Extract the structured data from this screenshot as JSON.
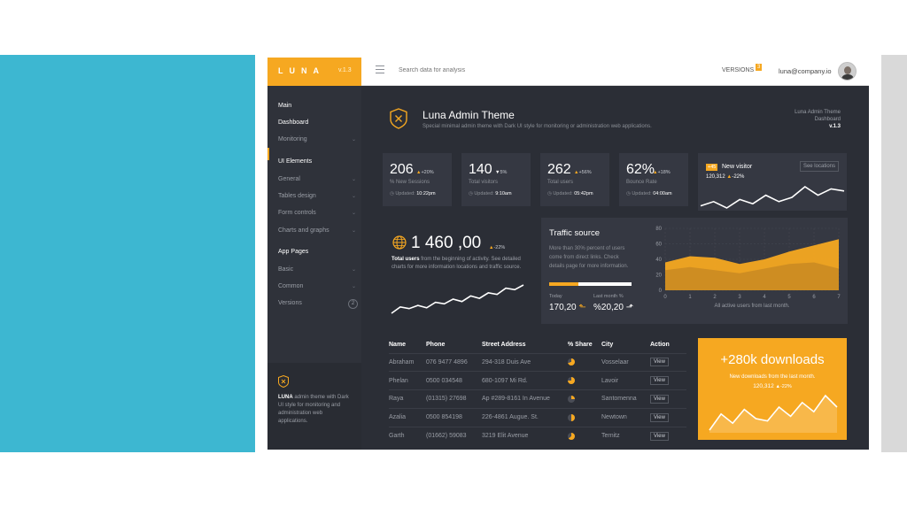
{
  "colors": {
    "accent": "#f6a821",
    "panel": "#2b2e36",
    "card": "#353842",
    "slide_blue": "#3db7d1"
  },
  "topbar": {
    "brand": "LUNA",
    "version": "v.1.3",
    "menu_icon": "hamburger-icon",
    "search_placeholder": "Search data for analysis",
    "versions_label": "VERSIONS",
    "versions_count": "3",
    "user_email": "luna@company.io"
  },
  "sidebar": {
    "main_heading": "Main",
    "dashboard": "Dashboard",
    "monitoring": "Monitoring",
    "ui_heading": "UI Elements",
    "general": "General",
    "tables": "Tables design",
    "forms": "Form controls",
    "charts": "Charts and graphs",
    "app_heading": "App Pages",
    "basic": "Basic",
    "common": "Common",
    "versions": "Versions",
    "versions_count": "2",
    "footer_brand": "LUNA",
    "footer_text": " admin theme with Dark UI style for monitoring and administration web applications."
  },
  "header": {
    "title": "Luna Admin Theme",
    "subtitle": "Special minimal admin theme with Dark UI style for monitoring or administration web applications.",
    "right_line1": "Luna Admin Theme",
    "right_line2": "Dashboard",
    "right_line3": "v.1.3"
  },
  "stats": [
    {
      "value": "206",
      "trend": "+20%",
      "label": "% New Sessions",
      "updated_label": "Updated:",
      "updated": "10:22pm"
    },
    {
      "value": "140",
      "trend": "5%",
      "label": "Total visitors",
      "updated_label": "Updated:",
      "updated": "9:10am"
    },
    {
      "value": "262",
      "trend": "+56%",
      "label": "Total users",
      "updated_label": "Updated:",
      "updated": "05:42pm"
    },
    {
      "value": "62%",
      "trend": "+18%",
      "label": "Bounce Rate",
      "updated_label": "Updated:",
      "updated": "04:00am"
    }
  ],
  "new_visitor": {
    "badge": "+45",
    "title": "New visitor",
    "value": "120,312",
    "trend": "-22%",
    "button": "See locations",
    "spark": [
      20,
      24,
      18,
      26,
      22,
      30,
      24,
      28,
      38,
      30,
      36,
      34
    ]
  },
  "total_users": {
    "value": "1 460 ,00",
    "trend": "-22%",
    "desc_bold": "Total users",
    "desc": " from the beginning of activity. See detailed charts for more information locations and traffic source.",
    "spark": [
      12,
      20,
      18,
      22,
      19,
      26,
      24,
      30,
      27,
      34,
      31,
      38,
      36,
      44,
      42,
      48
    ]
  },
  "traffic": {
    "title": "Traffic source",
    "desc": "More than 30% percent of users come from direct links. Check details page for more information.",
    "progress": 0.35,
    "today_label": "Today",
    "today_value": "170,20",
    "last_label": "Last month %",
    "last_value": "%20,20"
  },
  "chart_data": {
    "type": "area",
    "x": [
      0,
      1,
      2,
      3,
      4,
      5,
      6,
      7
    ],
    "ylim": [
      0,
      80
    ],
    "yticks": [
      0,
      20,
      40,
      60,
      80
    ],
    "xlabel": "All active users from last month.",
    "series": [
      {
        "values": [
          36,
          44,
          42,
          34,
          40,
          50,
          58,
          66
        ]
      },
      {
        "values": [
          26,
          30,
          26,
          22,
          28,
          34,
          36,
          28
        ]
      }
    ]
  },
  "table": {
    "headers": [
      "Name",
      "Phone",
      "Street Address",
      "% Share",
      "City",
      "Action"
    ],
    "view_label": "View",
    "rows": [
      {
        "name": "Abraham",
        "phone": "076 9477 4896",
        "address": "294-318 Duis Ave",
        "share": 0.7,
        "city": "Vosselaar"
      },
      {
        "name": "Phelan",
        "phone": "0500 034548",
        "address": "680-1097 Mi Rd.",
        "share": 0.75,
        "city": "Lavoir"
      },
      {
        "name": "Raya",
        "phone": "(01315) 27698",
        "address": "Ap #289-8161 In Avenue",
        "share": 0.25,
        "city": "Santomenna"
      },
      {
        "name": "Azalia",
        "phone": "0500 854198",
        "address": "226-4861 Augue. St.",
        "share": 0.5,
        "city": "Newtown"
      },
      {
        "name": "Garth",
        "phone": "(01662) 59083",
        "address": "3219 Elit Avenue",
        "share": 0.65,
        "city": "Ternitz"
      }
    ]
  },
  "downloads": {
    "title": "+280k downloads",
    "sub": "New downloads from the last month.",
    "value": "120,312",
    "trend": "-22%",
    "spark": [
      10,
      24,
      16,
      28,
      20,
      18,
      30,
      22,
      34,
      26,
      40,
      30
    ]
  }
}
